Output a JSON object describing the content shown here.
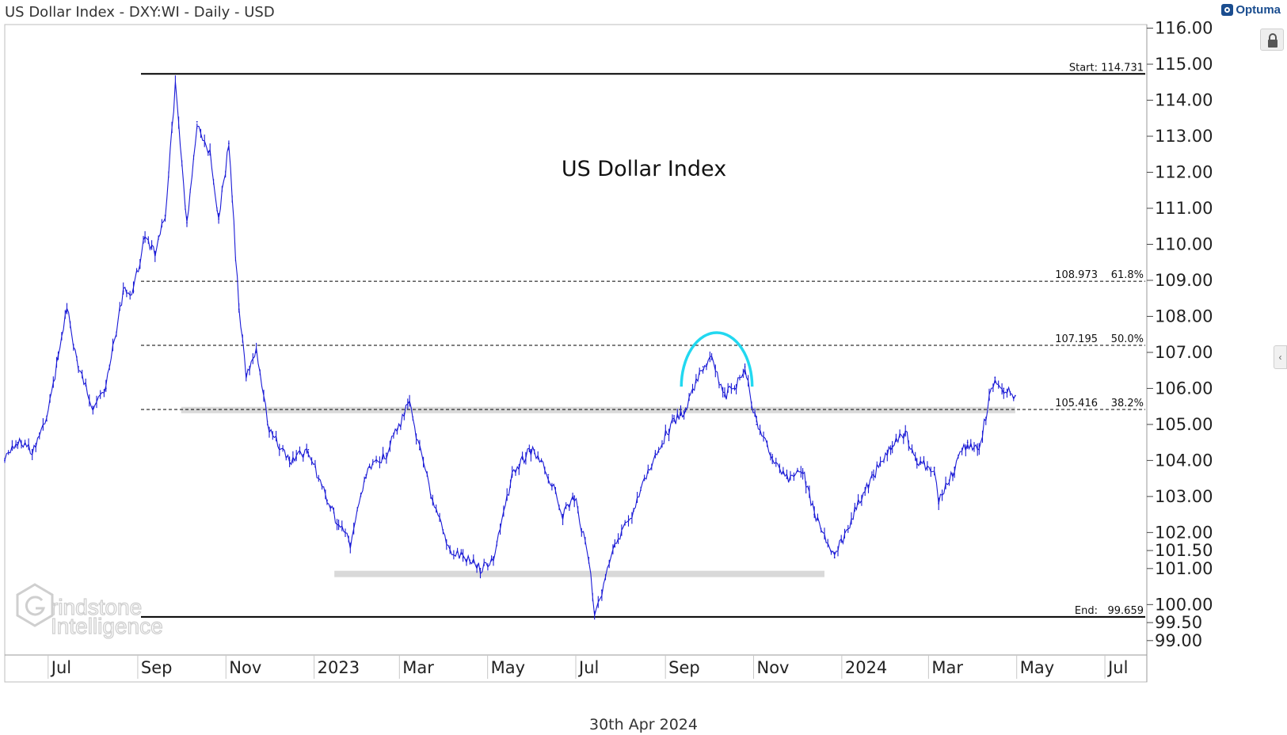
{
  "header": {
    "title": "US Dollar Index - DXY:WI - Daily - USD",
    "brand": "Optuma"
  },
  "footer": {
    "date": "30th Apr 2024"
  },
  "watermark": {
    "line1": "rindstone",
    "line2": "Intelligence"
  },
  "colors": {
    "price": "#1a1ad6",
    "arc": "#22d8f0",
    "band": "#d9d9d9",
    "level_line": "#000000"
  },
  "chart_data": {
    "type": "line",
    "annotation": "US Dollar Index",
    "ylim": [
      98.6,
      116.1
    ],
    "y_ticks": [
      116.0,
      115.0,
      114.0,
      113.0,
      112.0,
      111.0,
      110.0,
      109.0,
      108.0,
      107.0,
      106.0,
      105.0,
      104.0,
      103.0,
      102.0,
      101.5,
      101.0,
      100.0,
      99.5,
      99.0
    ],
    "y_tick_labels": [
      "116.00",
      "115.00",
      "114.00",
      "113.00",
      "112.00",
      "111.00",
      "110.00",
      "109.00",
      "108.00",
      "107.00",
      "106.00",
      "105.00",
      "104.00",
      "103.00",
      "102.00",
      "101.50",
      "101.00",
      "100.00",
      "99.50",
      "99.00"
    ],
    "x_ticks": [
      {
        "date": "2022-07-01",
        "label": "Jul"
      },
      {
        "date": "2022-09-01",
        "label": "Sep"
      },
      {
        "date": "2022-11-01",
        "label": "Nov"
      },
      {
        "date": "2023-01-01",
        "label": "2023"
      },
      {
        "date": "2023-03-01",
        "label": "Mar"
      },
      {
        "date": "2023-05-01",
        "label": "May"
      },
      {
        "date": "2023-07-01",
        "label": "Jul"
      },
      {
        "date": "2023-09-01",
        "label": "Sep"
      },
      {
        "date": "2023-11-01",
        "label": "Nov"
      },
      {
        "date": "2024-01-01",
        "label": "2024"
      },
      {
        "date": "2024-03-01",
        "label": "Mar"
      },
      {
        "date": "2024-05-01",
        "label": "May"
      },
      {
        "date": "2024-07-01",
        "label": "Jul"
      }
    ],
    "levels": [
      {
        "name": "Start",
        "value": 114.731,
        "label_left": "Start:",
        "label_right": "114.731",
        "style": "solid"
      },
      {
        "name": "61.8%",
        "value": 108.973,
        "label_left": "108.973",
        "label_right": "61.8%",
        "style": "dotted"
      },
      {
        "name": "50.0%",
        "value": 107.195,
        "label_left": "107.195",
        "label_right": "50.0%",
        "style": "dotted"
      },
      {
        "name": "38.2%",
        "value": 105.416,
        "label_left": "105.416",
        "label_right": "38.2%",
        "style": "dotted"
      },
      {
        "name": "End",
        "value": 99.659,
        "label_left": "End:",
        "label_right": "99.659",
        "style": "solid"
      }
    ],
    "support_bands": [
      {
        "value": 105.4,
        "start": "2022-10-01",
        "end": "2024-04-30"
      },
      {
        "value": 100.85,
        "start": "2023-01-15",
        "end": "2023-12-20"
      }
    ],
    "arc": {
      "start": "2023-09-12",
      "end": "2023-10-31",
      "top_value": 107.55,
      "base_value": 106.05
    },
    "series": [
      {
        "name": "US Dollar Index",
        "x": [
          "2022-06-01",
          "2022-06-10",
          "2022-06-20",
          "2022-06-30",
          "2022-07-08",
          "2022-07-14",
          "2022-07-22",
          "2022-08-01",
          "2022-08-10",
          "2022-08-22",
          "2022-08-29",
          "2022-09-06",
          "2022-09-13",
          "2022-09-20",
          "2022-09-27",
          "2022-10-05",
          "2022-10-12",
          "2022-10-21",
          "2022-10-27",
          "2022-11-03",
          "2022-11-10",
          "2022-11-15",
          "2022-11-22",
          "2022-12-01",
          "2022-12-15",
          "2022-12-28",
          "2023-01-10",
          "2023-01-18",
          "2023-01-26",
          "2023-02-06",
          "2023-02-20",
          "2023-03-08",
          "2023-03-15",
          "2023-03-24",
          "2023-04-05",
          "2023-04-14",
          "2023-04-26",
          "2023-05-05",
          "2023-05-18",
          "2023-05-31",
          "2023-06-12",
          "2023-06-22",
          "2023-06-30",
          "2023-07-10",
          "2023-07-14",
          "2023-07-19",
          "2023-07-28",
          "2023-08-10",
          "2023-08-25",
          "2023-09-07",
          "2023-09-15",
          "2023-09-27",
          "2023-10-03",
          "2023-10-12",
          "2023-10-20",
          "2023-10-26",
          "2023-11-03",
          "2023-11-14",
          "2023-11-24",
          "2023-12-05",
          "2023-12-13",
          "2023-12-27",
          "2024-01-10",
          "2024-01-23",
          "2024-02-05",
          "2024-02-14",
          "2024-02-22",
          "2024-03-05",
          "2024-03-08",
          "2024-03-19",
          "2024-03-28",
          "2024-04-05",
          "2024-04-12",
          "2024-04-16",
          "2024-04-22",
          "2024-04-30"
        ],
        "values": [
          104.0,
          104.5,
          104.3,
          105.1,
          106.9,
          108.2,
          106.6,
          105.5,
          106.0,
          108.7,
          108.7,
          110.2,
          109.7,
          110.8,
          114.4,
          110.6,
          113.4,
          112.5,
          110.7,
          112.8,
          108.2,
          106.4,
          107.0,
          104.8,
          104.0,
          104.3,
          102.9,
          102.2,
          101.7,
          103.6,
          104.2,
          105.6,
          104.3,
          102.9,
          101.5,
          101.3,
          101.0,
          101.3,
          103.6,
          104.3,
          103.6,
          102.5,
          103.0,
          101.3,
          99.8,
          100.4,
          101.6,
          102.6,
          104.2,
          105.1,
          105.4,
          106.6,
          106.8,
          105.8,
          106.1,
          106.6,
          105.0,
          104.1,
          103.5,
          103.7,
          102.5,
          101.3,
          102.6,
          103.6,
          104.4,
          104.8,
          103.9,
          103.8,
          102.8,
          103.8,
          104.5,
          104.3,
          105.7,
          106.3,
          106.0,
          105.8
        ]
      }
    ]
  }
}
